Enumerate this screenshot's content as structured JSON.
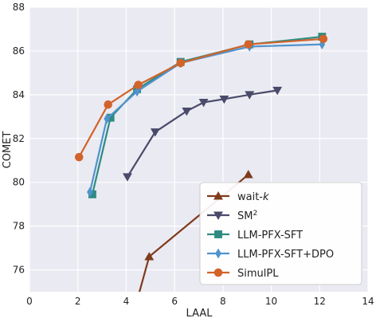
{
  "chart_data": {
    "type": "line",
    "xlabel": "LAAL",
    "ylabel": "COMET",
    "xlim": [
      0,
      14
    ],
    "ylim": [
      75,
      88
    ],
    "xticks": [
      0,
      2,
      4,
      6,
      8,
      10,
      12,
      14
    ],
    "yticks": [
      76,
      78,
      80,
      82,
      84,
      86,
      88
    ],
    "grid": true,
    "legend_position": "bottom-right",
    "series": [
      {
        "name": "wait-k",
        "legend": {
          "base": "wait-",
          "italic": "k",
          "sup": ""
        },
        "color": "#7f3b1c",
        "marker": "triangle-up",
        "x": [
          4.5,
          4.95,
          9.05
        ],
        "y": [
          74.8,
          76.6,
          80.35
        ]
      },
      {
        "name": "SM2",
        "legend": {
          "base": "SM",
          "italic": "",
          "sup": "2"
        },
        "color": "#4a4a6a",
        "marker": "triangle-down",
        "x": [
          4.05,
          5.2,
          6.5,
          7.2,
          8.05,
          9.1,
          10.25
        ],
        "y": [
          80.25,
          82.3,
          83.25,
          83.65,
          83.8,
          84.0,
          84.2
        ]
      },
      {
        "name": "LLM-PFX-SFT",
        "legend": {
          "base": "LLM-PFX-SFT",
          "italic": "",
          "sup": ""
        },
        "color": "#2e8b82",
        "marker": "square",
        "x": [
          2.6,
          3.35,
          4.45,
          6.25,
          9.1,
          12.1
        ],
        "y": [
          79.45,
          82.95,
          84.25,
          85.5,
          86.3,
          86.65
        ]
      },
      {
        "name": "LLM-PFX-SFT+DPO",
        "legend": {
          "base": "LLM-PFX-SFT+DPO",
          "italic": "",
          "sup": ""
        },
        "color": "#4f93cc",
        "marker": "thin-diamond",
        "x": [
          2.5,
          3.2,
          4.45,
          6.25,
          9.1,
          12.1
        ],
        "y": [
          79.55,
          82.9,
          84.15,
          85.45,
          86.2,
          86.3
        ]
      },
      {
        "name": "SimulPL",
        "legend": {
          "base": "SimulPL",
          "italic": "",
          "sup": ""
        },
        "color": "#d2632a",
        "marker": "circle",
        "x": [
          2.05,
          3.25,
          4.5,
          6.25,
          9.05,
          12.15
        ],
        "y": [
          81.15,
          83.55,
          84.45,
          85.45,
          86.3,
          86.55
        ]
      }
    ]
  }
}
